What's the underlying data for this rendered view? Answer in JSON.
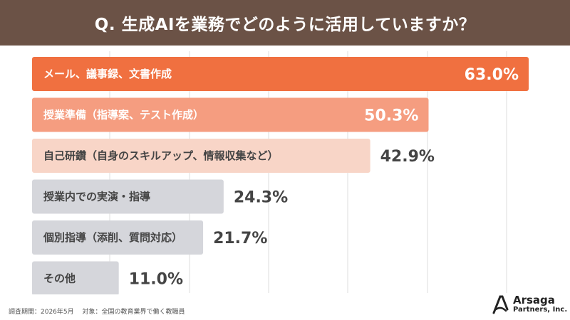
{
  "header": {
    "title": "Q. 生成AIを業務でどのように活用していますか？"
  },
  "chart_data": {
    "type": "bar",
    "orientation": "horizontal",
    "xlim": [
      0,
      63.0
    ],
    "grid": true,
    "categories": [
      "メール、議事録、文書作成",
      "授業準備（指導案、テスト作成）",
      "自己研鑽（自身のスキルアップ、情報収集など）",
      "授業内での実演・指導",
      "個別指導（添削、質問対応）",
      "その他"
    ],
    "values": [
      63.0,
      50.3,
      42.9,
      24.3,
      21.7,
      11.0
    ],
    "value_labels": [
      "63.0%",
      "50.3%",
      "42.9%",
      "24.3%",
      "21.7%",
      "11.0%"
    ],
    "bar_colors": [
      "#f07040",
      "#f59d80",
      "#f8d5c7",
      "#d5d6db",
      "#d5d6db",
      "#d5d6db"
    ],
    "label_colors": [
      "#ffffff",
      "#ffffff",
      "#444444",
      "#444444",
      "#444444",
      "#444444"
    ],
    "value_inside": [
      true,
      true,
      false,
      false,
      false,
      false
    ],
    "value_colors": [
      "#ffffff",
      "#ffffff",
      "#444444",
      "#444444",
      "#444444",
      "#444444"
    ]
  },
  "footer": {
    "note": "調査期間：2026年5月　 対象：全国の教育業界で働く教職員",
    "logo_line1": "Arsaga",
    "logo_line2": "Partners, Inc."
  },
  "colors": {
    "header_bg": "#6b5246",
    "grid": "#dddddd"
  }
}
